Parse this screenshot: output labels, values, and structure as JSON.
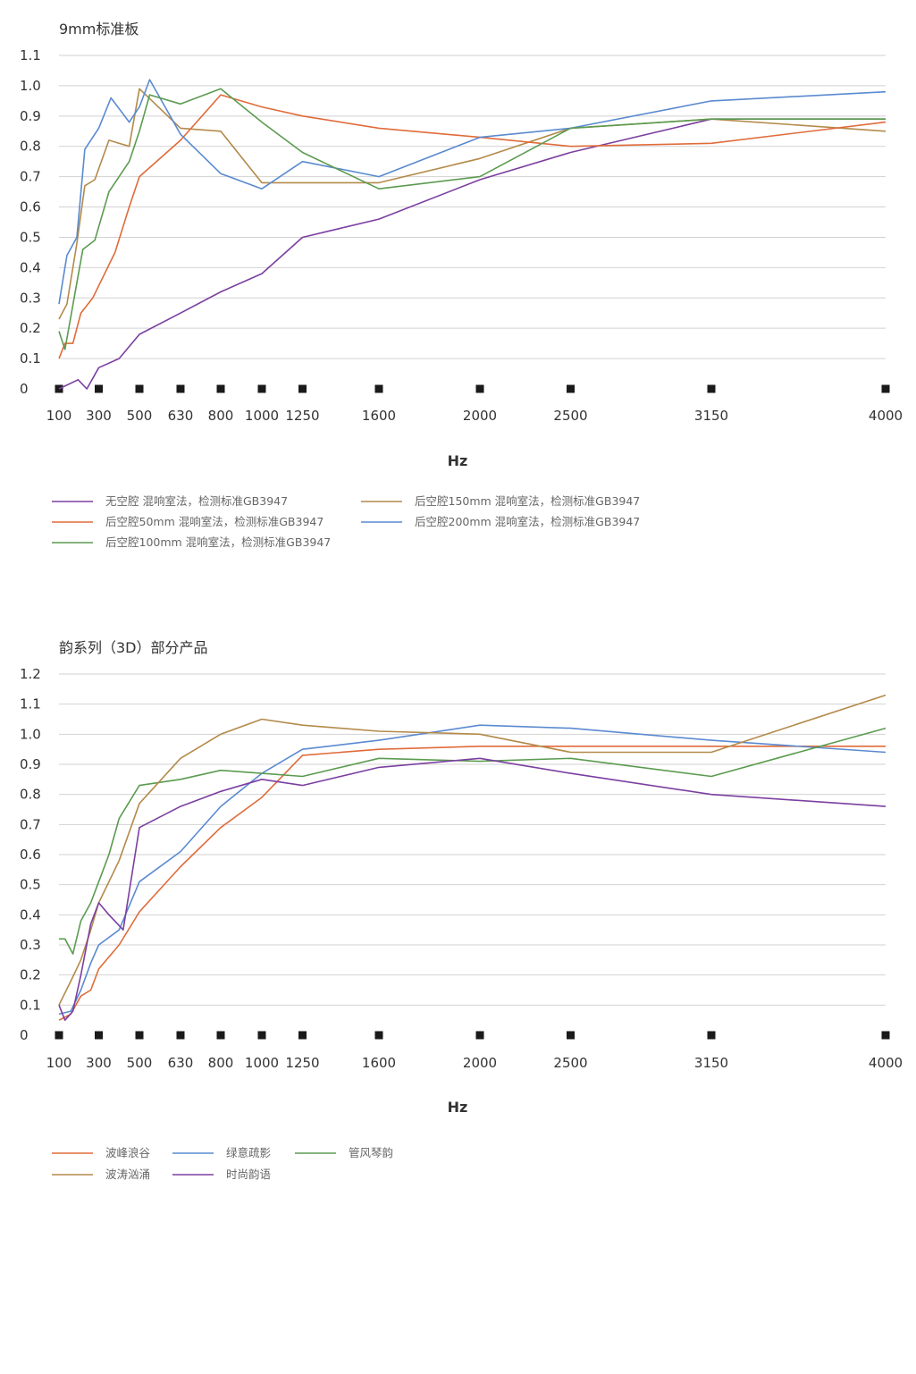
{
  "chart_data": [
    {
      "type": "line",
      "title": "9mm标准板",
      "xlabel": "Hz",
      "ylabel": "",
      "ylim": [
        0,
        1.1
      ],
      "y_ticks": [
        "1.1",
        "1.0",
        "0.9",
        "0.8",
        "0.7",
        "0.6",
        "0.5",
        "0.4",
        "0.3",
        "0.2",
        "0.1",
        "0"
      ],
      "x_tick_labels": [
        "100",
        "300",
        "500",
        "630",
        "800",
        "1000",
        "1250",
        "1600",
        "2000",
        "2500",
        "3150",
        "4000"
      ],
      "legend_columns": 2,
      "series": [
        {
          "name": "无空腔 混响室法，检测标准GB3947",
          "color": "#7b3fa0",
          "points": [
            [
              0.0,
              0.0
            ],
            [
              0.48,
              0.03
            ],
            [
              0.7,
              0.0
            ],
            [
              1.0,
              0.07
            ],
            [
              1.5,
              0.1
            ],
            [
              2.0,
              0.18
            ],
            [
              3.0,
              0.25
            ],
            [
              4.0,
              0.32
            ],
            [
              5.0,
              0.38
            ],
            [
              6.0,
              0.5
            ],
            [
              7.9,
              0.56
            ],
            [
              10.4,
              0.69
            ],
            [
              12.6,
              0.78
            ],
            [
              16.1,
              0.89
            ],
            [
              20.4,
              0.89
            ]
          ]
        },
        {
          "name": "后空腔150mm 混响室法，检测标准GB3947",
          "color": "#b38a4a",
          "points": [
            [
              0.0,
              0.23
            ],
            [
              0.2,
              0.28
            ],
            [
              0.45,
              0.48
            ],
            [
              0.65,
              0.67
            ],
            [
              0.9,
              0.69
            ],
            [
              1.25,
              0.82
            ],
            [
              1.75,
              0.8
            ],
            [
              2.0,
              0.99
            ],
            [
              3.0,
              0.86
            ],
            [
              4.0,
              0.85
            ],
            [
              5.0,
              0.68
            ],
            [
              6.0,
              0.68
            ],
            [
              7.9,
              0.68
            ],
            [
              10.4,
              0.76
            ],
            [
              12.6,
              0.86
            ],
            [
              16.1,
              0.89
            ],
            [
              20.4,
              0.85
            ]
          ]
        },
        {
          "name": "后空腔50mm 混响室法，检测标准GB3947",
          "color": "#e06b3a",
          "points": [
            [
              0.0,
              0.1
            ],
            [
              0.15,
              0.15
            ],
            [
              0.35,
              0.15
            ],
            [
              0.55,
              0.25
            ],
            [
              0.85,
              0.3
            ],
            [
              1.4,
              0.45
            ],
            [
              1.75,
              0.6
            ],
            [
              2.0,
              0.7
            ],
            [
              3.0,
              0.82
            ],
            [
              4.0,
              0.97
            ],
            [
              5.0,
              0.93
            ],
            [
              6.0,
              0.9
            ],
            [
              7.9,
              0.86
            ],
            [
              10.4,
              0.83
            ],
            [
              12.6,
              0.8
            ],
            [
              16.1,
              0.81
            ],
            [
              20.4,
              0.88
            ]
          ]
        },
        {
          "name": "后空腔200mm 混响室法，检测标准GB3947",
          "color": "#5a8ad0",
          "points": [
            [
              0.0,
              0.28
            ],
            [
              0.2,
              0.44
            ],
            [
              0.45,
              0.5
            ],
            [
              0.65,
              0.79
            ],
            [
              1.0,
              0.86
            ],
            [
              1.3,
              0.96
            ],
            [
              1.75,
              0.88
            ],
            [
              2.0,
              0.93
            ],
            [
              2.25,
              1.02
            ],
            [
              3.0,
              0.84
            ],
            [
              4.0,
              0.71
            ],
            [
              5.0,
              0.66
            ],
            [
              6.0,
              0.75
            ],
            [
              7.9,
              0.7
            ],
            [
              10.4,
              0.83
            ],
            [
              12.6,
              0.86
            ],
            [
              16.1,
              0.95
            ],
            [
              20.4,
              0.98
            ]
          ]
        },
        {
          "name": "后空腔100mm 混响室法，检测标准GB3947",
          "color": "#5b9b50",
          "points": [
            [
              0.0,
              0.19
            ],
            [
              0.15,
              0.13
            ],
            [
              0.45,
              0.35
            ],
            [
              0.6,
              0.46
            ],
            [
              0.9,
              0.49
            ],
            [
              1.25,
              0.65
            ],
            [
              1.75,
              0.75
            ],
            [
              2.0,
              0.85
            ],
            [
              2.25,
              0.97
            ],
            [
              3.0,
              0.94
            ],
            [
              4.0,
              0.99
            ],
            [
              5.0,
              0.88
            ],
            [
              6.0,
              0.78
            ],
            [
              7.9,
              0.66
            ],
            [
              10.4,
              0.7
            ],
            [
              12.6,
              0.86
            ],
            [
              16.1,
              0.89
            ],
            [
              20.4,
              0.89
            ]
          ]
        }
      ]
    },
    {
      "type": "line",
      "title": "韵系列（3D）部分产品",
      "xlabel": "Hz",
      "ylabel": "",
      "ylim": [
        0,
        1.2
      ],
      "y_ticks": [
        "1.2",
        "1.1",
        "1.0",
        "0.9",
        "0.8",
        "0.7",
        "0.6",
        "0.5",
        "0.4",
        "0.3",
        "0.2",
        "0.1",
        "0"
      ],
      "x_tick_labels": [
        "100",
        "300",
        "500",
        "630",
        "800",
        "1000",
        "1250",
        "1600",
        "2000",
        "2500",
        "3150",
        "4000"
      ],
      "legend_columns": 3,
      "series": [
        {
          "name": "波峰浪谷",
          "color": "#e06b3a",
          "points": [
            [
              0.0,
              0.05
            ],
            [
              0.3,
              0.07
            ],
            [
              0.55,
              0.13
            ],
            [
              0.8,
              0.15
            ],
            [
              1.0,
              0.22
            ],
            [
              1.5,
              0.3
            ],
            [
              2.0,
              0.41
            ],
            [
              3.0,
              0.56
            ],
            [
              4.0,
              0.69
            ],
            [
              5.0,
              0.79
            ],
            [
              6.0,
              0.93
            ],
            [
              7.9,
              0.95
            ],
            [
              10.4,
              0.96
            ],
            [
              12.6,
              0.96
            ],
            [
              16.1,
              0.96
            ],
            [
              20.4,
              0.96
            ]
          ]
        },
        {
          "name": "绿意疏影",
          "color": "#5a8ad0",
          "points": [
            [
              0.0,
              0.07
            ],
            [
              0.3,
              0.08
            ],
            [
              0.55,
              0.15
            ],
            [
              0.8,
              0.24
            ],
            [
              1.0,
              0.3
            ],
            [
              1.5,
              0.35
            ],
            [
              2.0,
              0.51
            ],
            [
              3.0,
              0.61
            ],
            [
              4.0,
              0.76
            ],
            [
              5.0,
              0.87
            ],
            [
              6.0,
              0.95
            ],
            [
              7.9,
              0.98
            ],
            [
              10.4,
              1.03
            ],
            [
              12.6,
              1.02
            ],
            [
              16.1,
              0.98
            ],
            [
              20.4,
              0.94
            ]
          ]
        },
        {
          "name": "管风琴韵",
          "color": "#5b9b50",
          "points": [
            [
              0.0,
              0.32
            ],
            [
              0.15,
              0.32
            ],
            [
              0.35,
              0.27
            ],
            [
              0.55,
              0.38
            ],
            [
              0.8,
              0.44
            ],
            [
              1.0,
              0.51
            ],
            [
              1.25,
              0.6
            ],
            [
              1.5,
              0.72
            ],
            [
              2.0,
              0.83
            ],
            [
              3.0,
              0.85
            ],
            [
              4.0,
              0.88
            ],
            [
              5.0,
              0.87
            ],
            [
              6.0,
              0.86
            ],
            [
              7.9,
              0.92
            ],
            [
              10.4,
              0.91
            ],
            [
              12.6,
              0.92
            ],
            [
              16.1,
              0.86
            ],
            [
              20.4,
              1.02
            ]
          ]
        },
        {
          "name": "波涛汹涌",
          "color": "#b38a4a",
          "points": [
            [
              0.0,
              0.1
            ],
            [
              0.3,
              0.18
            ],
            [
              0.55,
              0.25
            ],
            [
              0.8,
              0.35
            ],
            [
              1.0,
              0.44
            ],
            [
              1.5,
              0.58
            ],
            [
              2.0,
              0.77
            ],
            [
              3.0,
              0.92
            ],
            [
              4.0,
              1.0
            ],
            [
              5.0,
              1.05
            ],
            [
              6.0,
              1.03
            ],
            [
              7.9,
              1.01
            ],
            [
              10.4,
              1.0
            ],
            [
              12.6,
              0.94
            ],
            [
              16.1,
              0.94
            ],
            [
              20.4,
              1.13
            ]
          ]
        },
        {
          "name": "时尚韵语",
          "color": "#7b3fa0",
          "points": [
            [
              0.0,
              0.1
            ],
            [
              0.15,
              0.05
            ],
            [
              0.35,
              0.08
            ],
            [
              0.55,
              0.2
            ],
            [
              0.8,
              0.37
            ],
            [
              1.0,
              0.44
            ],
            [
              1.25,
              0.4
            ],
            [
              1.6,
              0.35
            ],
            [
              2.0,
              0.69
            ],
            [
              3.0,
              0.76
            ],
            [
              4.0,
              0.81
            ],
            [
              5.0,
              0.85
            ],
            [
              6.0,
              0.83
            ],
            [
              7.9,
              0.89
            ],
            [
              10.4,
              0.92
            ],
            [
              12.6,
              0.87
            ],
            [
              16.1,
              0.8
            ],
            [
              20.4,
              0.76
            ]
          ]
        }
      ]
    }
  ]
}
